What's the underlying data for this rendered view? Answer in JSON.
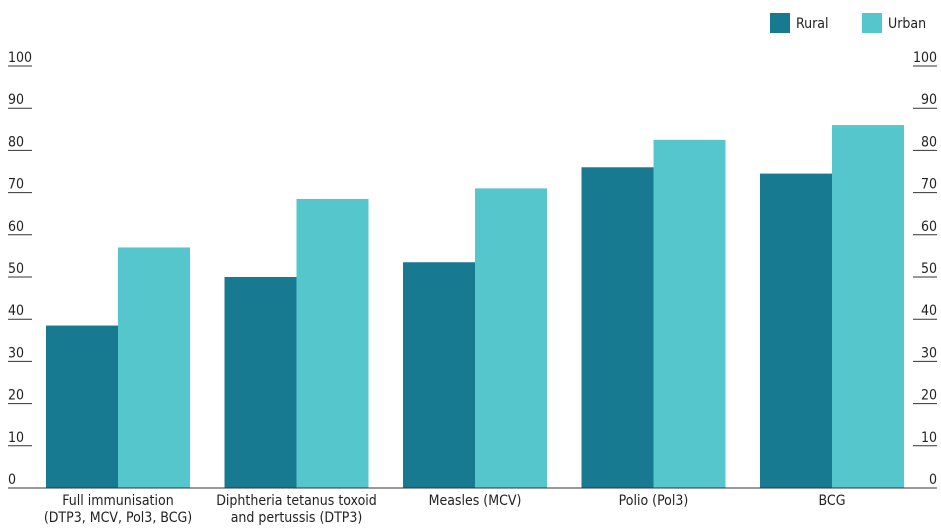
{
  "chart_data": {
    "type": "bar",
    "categories": [
      [
        "Full immunisation",
        "(DTP3, MCV, Pol3, BCG)"
      ],
      [
        "Diphtheria tetanus toxoid",
        "and pertussis (DTP3)"
      ],
      [
        "Measles (MCV)"
      ],
      [
        "Polio (Pol3)"
      ],
      [
        "BCG"
      ]
    ],
    "series": [
      {
        "name": "Rural",
        "color": "#187a91",
        "values": [
          38.5,
          50,
          53.5,
          76,
          74.5
        ]
      },
      {
        "name": "Urban",
        "color": "#55c6cc",
        "values": [
          57,
          68.5,
          71,
          82.5,
          86
        ]
      }
    ],
    "ylim": [
      0,
      100
    ],
    "yticks": [
      0,
      10,
      20,
      30,
      40,
      50,
      60,
      70,
      80,
      90,
      100
    ],
    "legend": "top-right",
    "grid": false
  }
}
